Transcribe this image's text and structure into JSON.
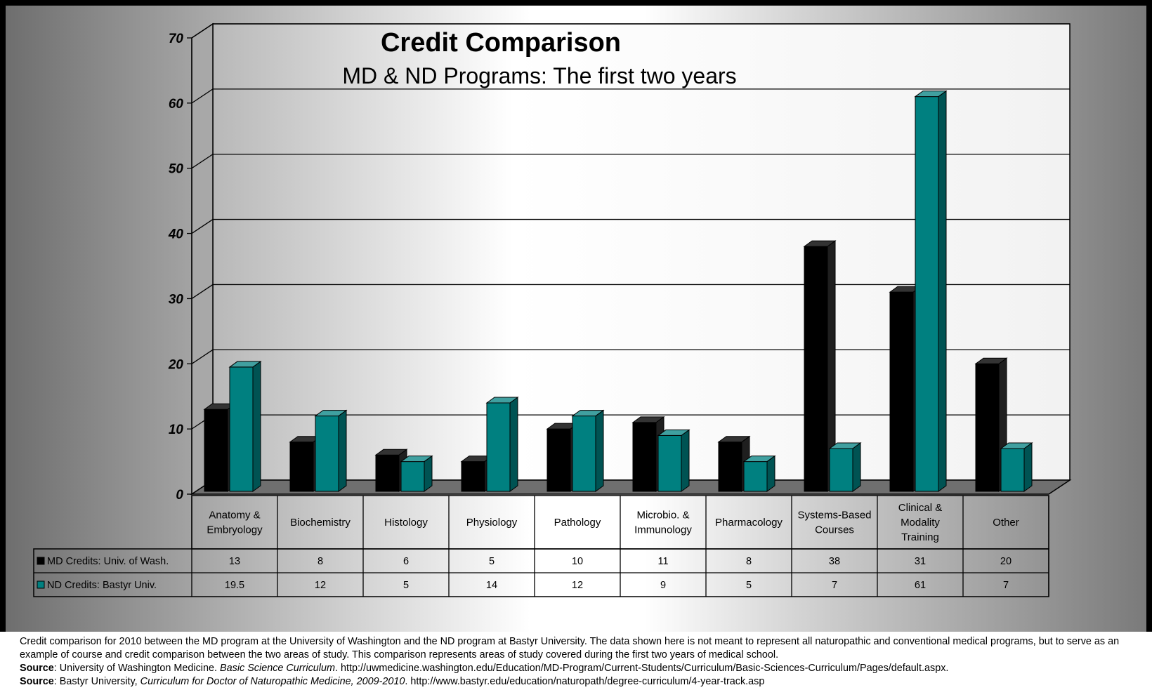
{
  "chart_data": {
    "type": "bar",
    "style": "3d-clustered-with-data-table",
    "title": "Credit Comparison",
    "subtitle": "MD & ND Programs: The first two years",
    "categories": [
      "Anatomy & Embryology",
      "Biochemistry",
      "Histology",
      "Physiology",
      "Pathology",
      "Microbio. & Immunology",
      "Pharmacology",
      "Systems-Based Courses",
      "Clinical & Modality Training",
      "Other"
    ],
    "category_lines": [
      [
        "Anatomy &",
        "Embryology"
      ],
      [
        "Biochemistry"
      ],
      [
        "Histology"
      ],
      [
        "Physiology"
      ],
      [
        "Pathology"
      ],
      [
        "Microbio. &",
        "Immunology"
      ],
      [
        "Pharmacology"
      ],
      [
        "Systems-Based",
        "Courses"
      ],
      [
        "Clinical &",
        "Modality",
        "Training"
      ],
      [
        "Other"
      ]
    ],
    "series": [
      {
        "name": "MD Credits: Univ. of Wash.",
        "color": "#000000",
        "values": [
          13,
          8,
          6,
          5,
          10,
          11,
          8,
          38,
          31,
          20
        ],
        "value_labels": [
          "13",
          "8",
          "6",
          "5",
          "10",
          "11",
          "8",
          "38",
          "31",
          "20"
        ]
      },
      {
        "name": "ND Credits: Bastyr Univ.",
        "color": "#008080",
        "values": [
          19.5,
          12,
          5,
          14,
          12,
          9,
          5,
          7,
          61,
          7
        ],
        "value_labels": [
          "19.5",
          "12",
          "5",
          "14",
          "12",
          "9",
          "5",
          "7",
          "61",
          "7"
        ]
      }
    ],
    "yticks": [
      "0",
      "10",
      "20",
      "30",
      "40",
      "50",
      "60",
      "70"
    ],
    "ylim": [
      0,
      70
    ],
    "grid": true,
    "legend": "data-table-left"
  },
  "caption": {
    "text": "Credit comparison for 2010 between the MD program at the University of Washington and the ND program at Bastyr University. The data shown here is not meant to represent all naturopathic and conventional medical programs, but to serve as an example of course and credit comparison between the two areas of study. This comparison represents areas of study covered during the first two years of medical school.",
    "source1": {
      "label": "Source",
      "pre": ": University of Washington Medicine. ",
      "italic": "Basic Science Curriculum",
      "post": ". http://uwmedicine.washington.edu/Education/MD-Program/Current-Students/Curriculum/Basic-Sciences-Curriculum/Pages/default.aspx."
    },
    "source2": {
      "label": "Source",
      "pre": ": Bastyr University, ",
      "italic": "Curriculum for Doctor of Naturopathic Medicine, 2009-2010",
      "post": ". http://www.bastyr.edu/education/naturopath/degree-curriculum/4-year-track.asp"
    }
  }
}
